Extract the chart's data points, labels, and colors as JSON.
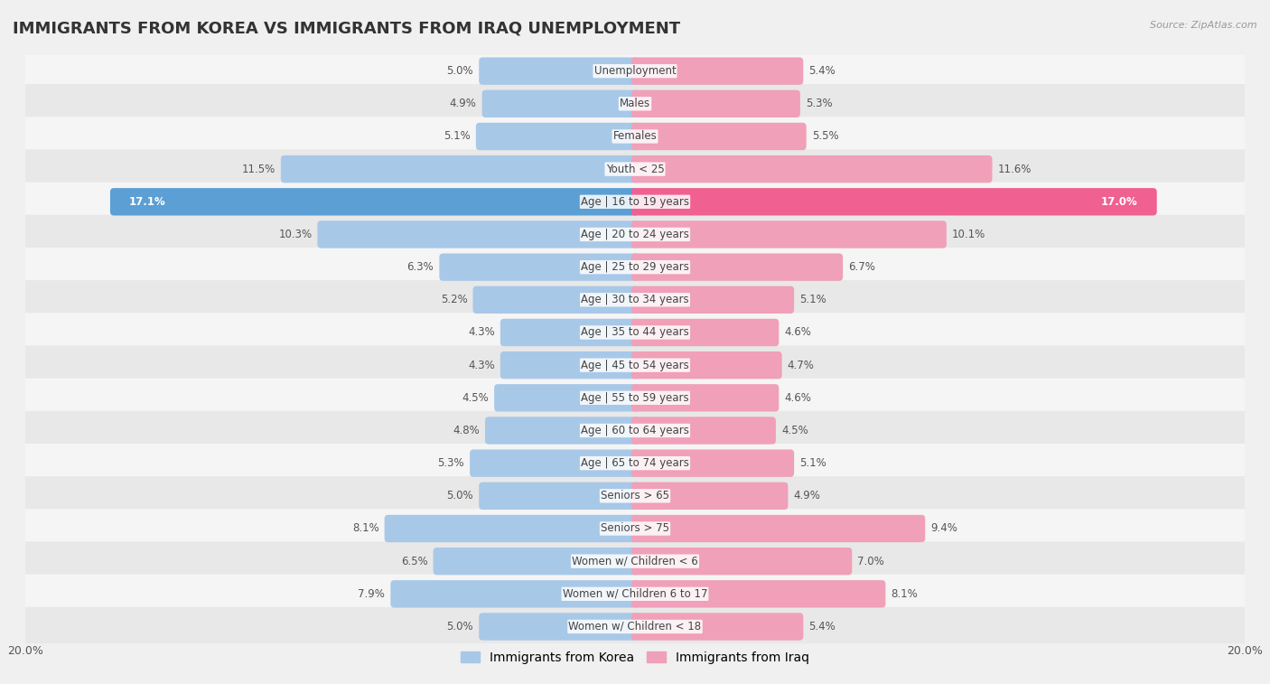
{
  "title": "IMMIGRANTS FROM KOREA VS IMMIGRANTS FROM IRAQ UNEMPLOYMENT",
  "source": "Source: ZipAtlas.com",
  "categories": [
    "Unemployment",
    "Males",
    "Females",
    "Youth < 25",
    "Age | 16 to 19 years",
    "Age | 20 to 24 years",
    "Age | 25 to 29 years",
    "Age | 30 to 34 years",
    "Age | 35 to 44 years",
    "Age | 45 to 54 years",
    "Age | 55 to 59 years",
    "Age | 60 to 64 years",
    "Age | 65 to 74 years",
    "Seniors > 65",
    "Seniors > 75",
    "Women w/ Children < 6",
    "Women w/ Children 6 to 17",
    "Women w/ Children < 18"
  ],
  "korea_values": [
    5.0,
    4.9,
    5.1,
    11.5,
    17.1,
    10.3,
    6.3,
    5.2,
    4.3,
    4.3,
    4.5,
    4.8,
    5.3,
    5.0,
    8.1,
    6.5,
    7.9,
    5.0
  ],
  "iraq_values": [
    5.4,
    5.3,
    5.5,
    11.6,
    17.0,
    10.1,
    6.7,
    5.1,
    4.6,
    4.7,
    4.6,
    4.5,
    5.1,
    4.9,
    9.4,
    7.0,
    8.1,
    5.4
  ],
  "korea_color": "#a8c8e8",
  "iraq_color": "#f0a0b8",
  "korea_highlight_color": "#5b9fd4",
  "iraq_highlight_color": "#f06090",
  "row_color_even": "#f5f5f5",
  "row_color_odd": "#e8e8e8",
  "axis_limit": 20.0,
  "background_color": "#f0f0f0",
  "title_fontsize": 13,
  "label_fontsize": 8.5,
  "value_fontsize": 8.5,
  "legend_korea": "Immigrants from Korea",
  "legend_iraq": "Immigrants from Iraq"
}
